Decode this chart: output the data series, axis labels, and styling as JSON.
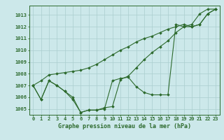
{
  "xlabel": "Graphe pression niveau de la mer (hPa)",
  "x": [
    0,
    1,
    2,
    3,
    4,
    5,
    6,
    7,
    8,
    9,
    10,
    11,
    12,
    13,
    14,
    15,
    16,
    17,
    18,
    19,
    20,
    21,
    22,
    23
  ],
  "series1": [
    1007.0,
    1005.8,
    1007.4,
    1007.0,
    1006.5,
    1006.0,
    1004.7,
    1004.9,
    1004.9,
    1005.0,
    1007.4,
    1007.6,
    1007.7,
    1006.9,
    1006.4,
    1006.2,
    1006.2,
    1006.2,
    1012.2,
    1012.0,
    1012.2,
    1013.1,
    1013.5,
    1013.5
  ],
  "series2": [
    1007.0,
    1005.8,
    1007.4,
    1007.0,
    1006.5,
    1005.8,
    1004.7,
    1004.9,
    1004.9,
    1005.1,
    1005.2,
    1007.5,
    1007.8,
    1008.5,
    1009.2,
    1009.8,
    1010.3,
    1010.8,
    1011.5,
    1012.0,
    1012.0,
    1012.2,
    1013.1,
    1013.5
  ],
  "series3": [
    1007.0,
    1007.4,
    1007.9,
    1008.0,
    1008.1,
    1008.2,
    1008.3,
    1008.5,
    1008.8,
    1009.2,
    1009.6,
    1010.0,
    1010.3,
    1010.7,
    1011.0,
    1011.2,
    1011.5,
    1011.8,
    1012.0,
    1012.2,
    1012.0,
    1012.2,
    1013.1,
    1013.5
  ],
  "ylim": [
    1004.5,
    1013.8
  ],
  "yticks": [
    1005,
    1006,
    1007,
    1008,
    1009,
    1010,
    1011,
    1012,
    1013
  ],
  "bg_color": "#cce8ea",
  "line_color": "#2d6a2d",
  "grid_color": "#aacece",
  "marker": "D",
  "marker_size": 1.8,
  "linewidth": 0.8,
  "tick_fontsize": 5.0,
  "label_fontsize": 6.0
}
